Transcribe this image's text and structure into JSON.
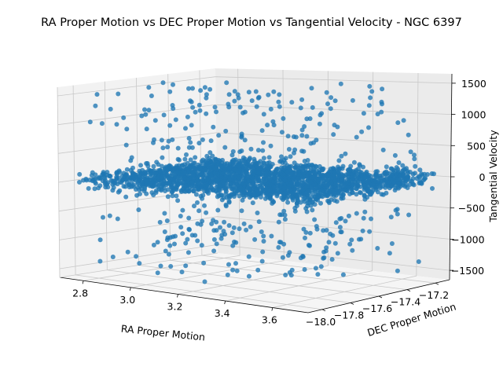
{
  "chart_data": {
    "type": "scatter",
    "projection": "3d",
    "title": "RA Proper Motion vs DEC Proper Motion vs Tangential Velocity - NGC 6397",
    "xlabel": "RA Proper Motion",
    "ylabel": "DEC Proper Motion",
    "zlabel": "Tangential Velocity",
    "xlim": [
      2.7,
      3.75
    ],
    "ylim": [
      -18.1,
      -17.1
    ],
    "zlim": [
      -1650,
      1650
    ],
    "xticks": [
      "2.8",
      "3.0",
      "3.2",
      "3.4",
      "3.6"
    ],
    "yticks": [
      "−18.0",
      "−17.8",
      "−17.6",
      "−17.4",
      "−17.2"
    ],
    "zticks": [
      "−1500",
      "−1000",
      "−500",
      "0",
      "500",
      "1000",
      "1500"
    ],
    "marker_color": "#1f77b4",
    "grid": true,
    "point_count": 2600,
    "distribution": {
      "ra_range": [
        2.72,
        3.72
      ],
      "dec_range": [
        -18.02,
        -17.15
      ],
      "core_velocity_range": [
        -200,
        200
      ],
      "outlier_velocity_range": [
        -1550,
        1550
      ]
    }
  }
}
